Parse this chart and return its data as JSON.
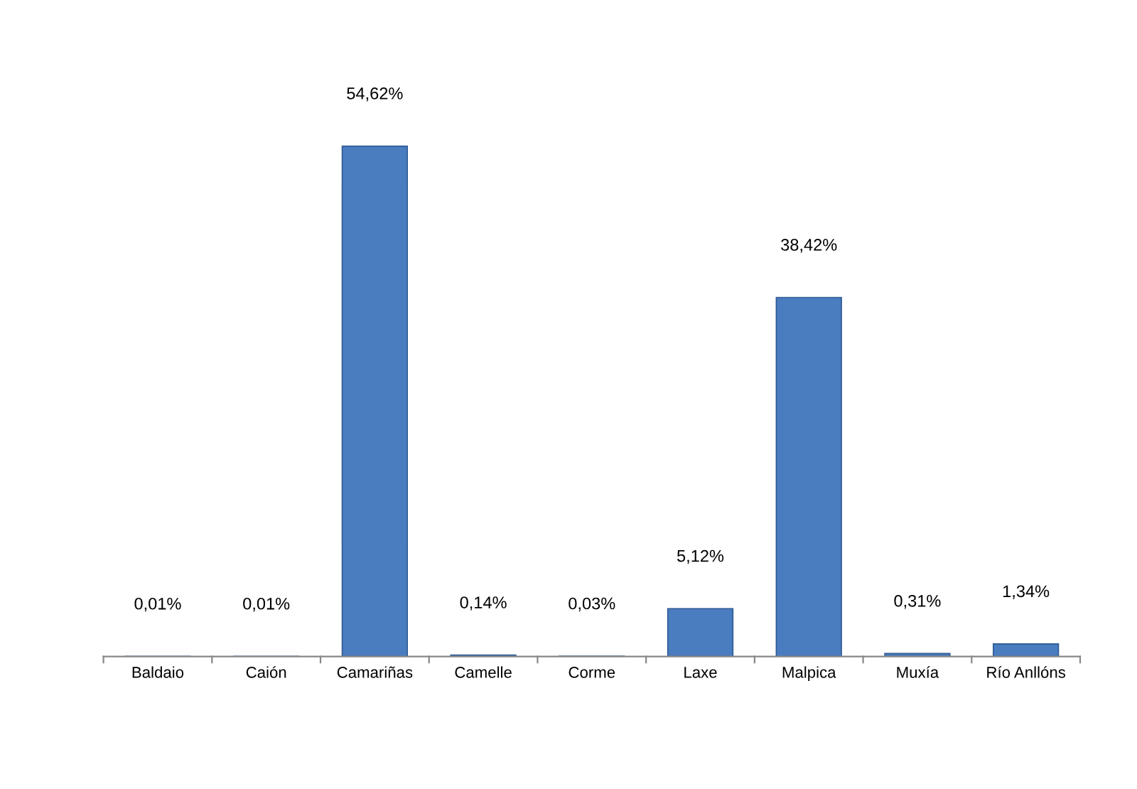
{
  "chart_data": {
    "type": "bar",
    "categories": [
      "Baldaio",
      "Caión",
      "Camariñas",
      "Camelle",
      "Corme",
      "Laxe",
      "Malpica",
      "Muxía",
      "Río Anllóns"
    ],
    "values": [
      0.01,
      0.01,
      54.62,
      0.14,
      0.03,
      5.12,
      38.42,
      0.31,
      1.34
    ],
    "value_labels": [
      "0,01%",
      "0,01%",
      "54,62%",
      "0,14%",
      "0,03%",
      "5,12%",
      "38,42%",
      "0,31%",
      "1,34%"
    ],
    "color": "#4a7cc0",
    "grid": false,
    "legend": false
  }
}
